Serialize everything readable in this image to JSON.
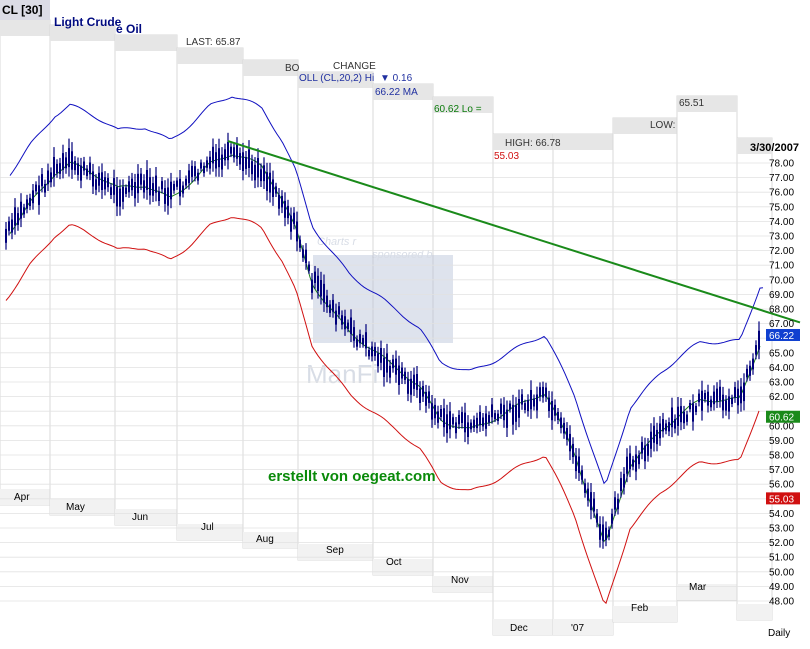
{
  "header": {
    "symbol": "CL [30]",
    "name_part1": "Light Crude",
    "name_part2": "e Oil",
    "last_label": "LAST: 65.87",
    "bol_label": "BO",
    "change_label": "CHANGE",
    "boll_label": "OLL (CL,20,2) Hi",
    "change_value": "0.16",
    "hi_value": "66.22 MA",
    "lo_label": "60.62 Lo =",
    "high_label": "HIGH: 66.78",
    "low_value_red": "55.03",
    "low_label": "LOW:",
    "low_value": "65.51",
    "date": "3/30/2007"
  },
  "watermark": {
    "line1": "Charts r",
    "line2": "sponsored b",
    "brand": "ManFi"
  },
  "annotation": "erstellt von oegeat.com",
  "footer": {
    "period": "Daily"
  },
  "colors": {
    "price": "#00007a",
    "upper_band": "#1010c0",
    "middle_band": "#1a7a1a",
    "lower_band": "#d01010",
    "trendline": "#1a8a1a",
    "badge_hi": "#1040d0",
    "badge_mid": "#1a8a1a",
    "badge_lo": "#d01010"
  },
  "chart_data": {
    "type": "candlestick",
    "title": "CL [30] Light Crude Oil",
    "period": "Daily",
    "date_range": [
      "2006-04",
      "2007-03-30"
    ],
    "y_ticks": [
      48,
      49,
      50,
      51,
      52,
      53,
      54,
      55,
      56,
      57,
      58,
      59,
      60,
      61,
      62,
      63,
      64,
      65,
      66,
      67,
      68,
      69,
      70,
      71,
      72,
      73,
      74,
      75,
      76,
      77,
      78
    ],
    "ylim": [
      47.5,
      79
    ],
    "x_labels": [
      "Apr",
      "May",
      "Jun",
      "Jul",
      "Aug",
      "Sep",
      "Oct",
      "Nov",
      "Dec",
      "'07",
      "Feb",
      "Mar"
    ],
    "last": 65.87,
    "change": 0.16,
    "high": 66.78,
    "low": 65.51,
    "bollinger": {
      "period": 20,
      "deviations": 2,
      "upper": 66.22,
      "middle": 60.62,
      "lower": 55.03
    },
    "price_badges": [
      67.9,
      66.22,
      65.87
    ],
    "close_series": [
      {
        "month": "Apr",
        "value": 73.0
      },
      {
        "month": "Apr",
        "value": 75.5
      },
      {
        "month": "May",
        "value": 77.5
      },
      {
        "month": "May",
        "value": 78.0
      },
      {
        "month": "May",
        "value": 77.0
      },
      {
        "month": "Jun",
        "value": 76.0
      },
      {
        "month": "Jun",
        "value": 76.5
      },
      {
        "month": "Jun",
        "value": 75.8
      },
      {
        "month": "Jul",
        "value": 78.0
      },
      {
        "month": "Jul",
        "value": 78.5
      },
      {
        "month": "Aug",
        "value": 77.5
      },
      {
        "month": "Aug",
        "value": 75.5
      },
      {
        "month": "Aug",
        "value": 73.5
      },
      {
        "month": "Sep",
        "value": 70.0
      },
      {
        "month": "Sep",
        "value": 66.5
      },
      {
        "month": "Oct",
        "value": 64.0
      },
      {
        "month": "Oct",
        "value": 62.5
      },
      {
        "month": "Nov",
        "value": 60.5
      },
      {
        "month": "Nov",
        "value": 60.0
      },
      {
        "month": "Dec",
        "value": 61.0
      },
      {
        "month": "Dec",
        "value": 62.0
      },
      {
        "month": "'07",
        "value": 58.0
      },
      {
        "month": "'07",
        "value": 52.0
      },
      {
        "month": "Feb",
        "value": 57.5
      },
      {
        "month": "Feb",
        "value": 59.5
      },
      {
        "month": "Mar",
        "value": 61.5
      },
      {
        "month": "Mar",
        "value": 62.0
      },
      {
        "month": "Mar",
        "value": 65.87
      }
    ],
    "trendline": {
      "from": {
        "month": "Jul",
        "value": 79.5
      },
      "to": {
        "month": "Mar",
        "value": 67.9
      }
    }
  }
}
